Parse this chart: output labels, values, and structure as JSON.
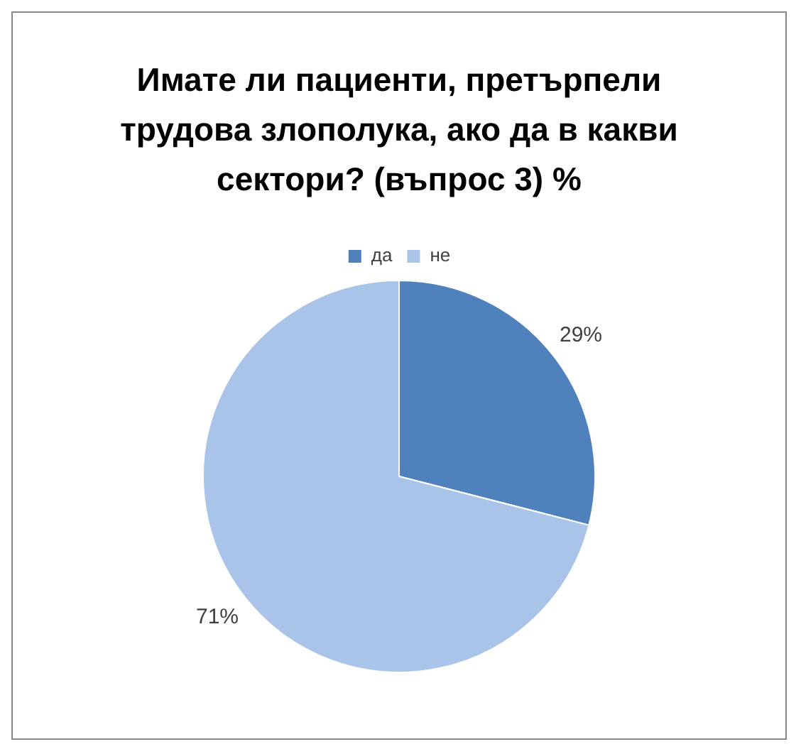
{
  "chart_data": {
    "type": "pie",
    "title": "Имате ли пациенти, претърпели трудова злополука, ако да в какви сектори? (въпрос 3) %",
    "categories": [
      "да",
      "не"
    ],
    "values": [
      29,
      71
    ],
    "colors": [
      "#4f81bd",
      "#a9c4e8"
    ],
    "value_labels": [
      "29%",
      "71%"
    ],
    "legend": "top"
  }
}
